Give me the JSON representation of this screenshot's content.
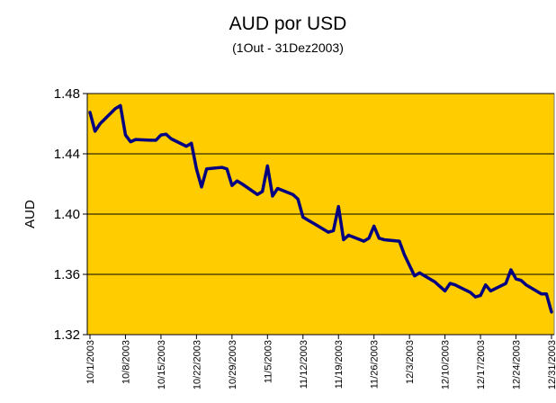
{
  "chart_data": {
    "type": "line",
    "title": "AUD por USD",
    "subtitle": "(1Out - 31Dez2003)",
    "y_label": "AUD",
    "x": [
      "10/1/2003",
      "10/2/2003",
      "10/3/2003",
      "10/6/2003",
      "10/7/2003",
      "10/8/2003",
      "10/9/2003",
      "10/10/2003",
      "10/13/2003",
      "10/14/2003",
      "10/15/2003",
      "10/16/2003",
      "10/17/2003",
      "10/20/2003",
      "10/21/2003",
      "10/22/2003",
      "10/23/2003",
      "10/24/2003",
      "10/27/2003",
      "10/28/2003",
      "10/29/2003",
      "10/30/2003",
      "10/31/2003",
      "11/3/2003",
      "11/4/2003",
      "11/5/2003",
      "11/6/2003",
      "11/7/2003",
      "11/10/2003",
      "11/11/2003",
      "11/12/2003",
      "11/13/2003",
      "11/14/2003",
      "11/17/2003",
      "11/18/2003",
      "11/19/2003",
      "11/20/2003",
      "11/21/2003",
      "11/24/2003",
      "11/25/2003",
      "11/26/2003",
      "11/27/2003",
      "11/28/2003",
      "12/1/2003",
      "12/2/2003",
      "12/3/2003",
      "12/4/2003",
      "12/5/2003",
      "12/8/2003",
      "12/9/2003",
      "12/10/2003",
      "12/11/2003",
      "12/12/2003",
      "12/15/2003",
      "12/16/2003",
      "12/17/2003",
      "12/18/2003",
      "12/19/2003",
      "12/22/2003",
      "12/23/2003",
      "12/24/2003",
      "12/25/2003",
      "12/26/2003",
      "12/29/2003",
      "12/30/2003",
      "12/31/2003"
    ],
    "series": [
      {
        "name": "AUD",
        "color": "#000080",
        "values": [
          1.4675,
          1.455,
          1.46,
          1.47,
          1.472,
          1.4525,
          1.448,
          1.4495,
          1.449,
          1.449,
          1.4525,
          1.453,
          1.45,
          1.445,
          1.447,
          1.43,
          1.418,
          1.43,
          1.431,
          1.43,
          1.419,
          1.422,
          1.42,
          1.413,
          1.415,
          1.432,
          1.412,
          1.417,
          1.413,
          1.41,
          1.398,
          1.396,
          1.394,
          1.388,
          1.389,
          1.405,
          1.383,
          1.386,
          1.382,
          1.384,
          1.392,
          1.384,
          1.383,
          1.382,
          1.373,
          1.366,
          1.359,
          1.361,
          1.355,
          1.352,
          1.349,
          1.354,
          1.353,
          1.348,
          1.345,
          1.346,
          1.353,
          1.349,
          1.354,
          1.363,
          1.357,
          1.356,
          1.353,
          1.347,
          1.347,
          1.335
        ]
      }
    ],
    "xticks": [
      "10/1/2003",
      "10/8/2003",
      "10/15/2003",
      "10/22/2003",
      "10/29/2003",
      "11/5/2003",
      "11/12/2003",
      "11/19/2003",
      "11/26/2003",
      "12/3/2003",
      "12/10/2003",
      "12/17/2003",
      "12/24/2003",
      "12/31/2003"
    ],
    "ylim": [
      1.32,
      1.48
    ],
    "yticks": [
      {
        "value": 1.32,
        "label": "1.32"
      },
      {
        "value": 1.36,
        "label": "1.36"
      },
      {
        "value": 1.4,
        "label": "1.40"
      },
      {
        "value": 1.44,
        "label": "1.44"
      },
      {
        "value": 1.48,
        "label": "1.48"
      }
    ],
    "grid": true,
    "plot_background": "#FFCC00"
  }
}
